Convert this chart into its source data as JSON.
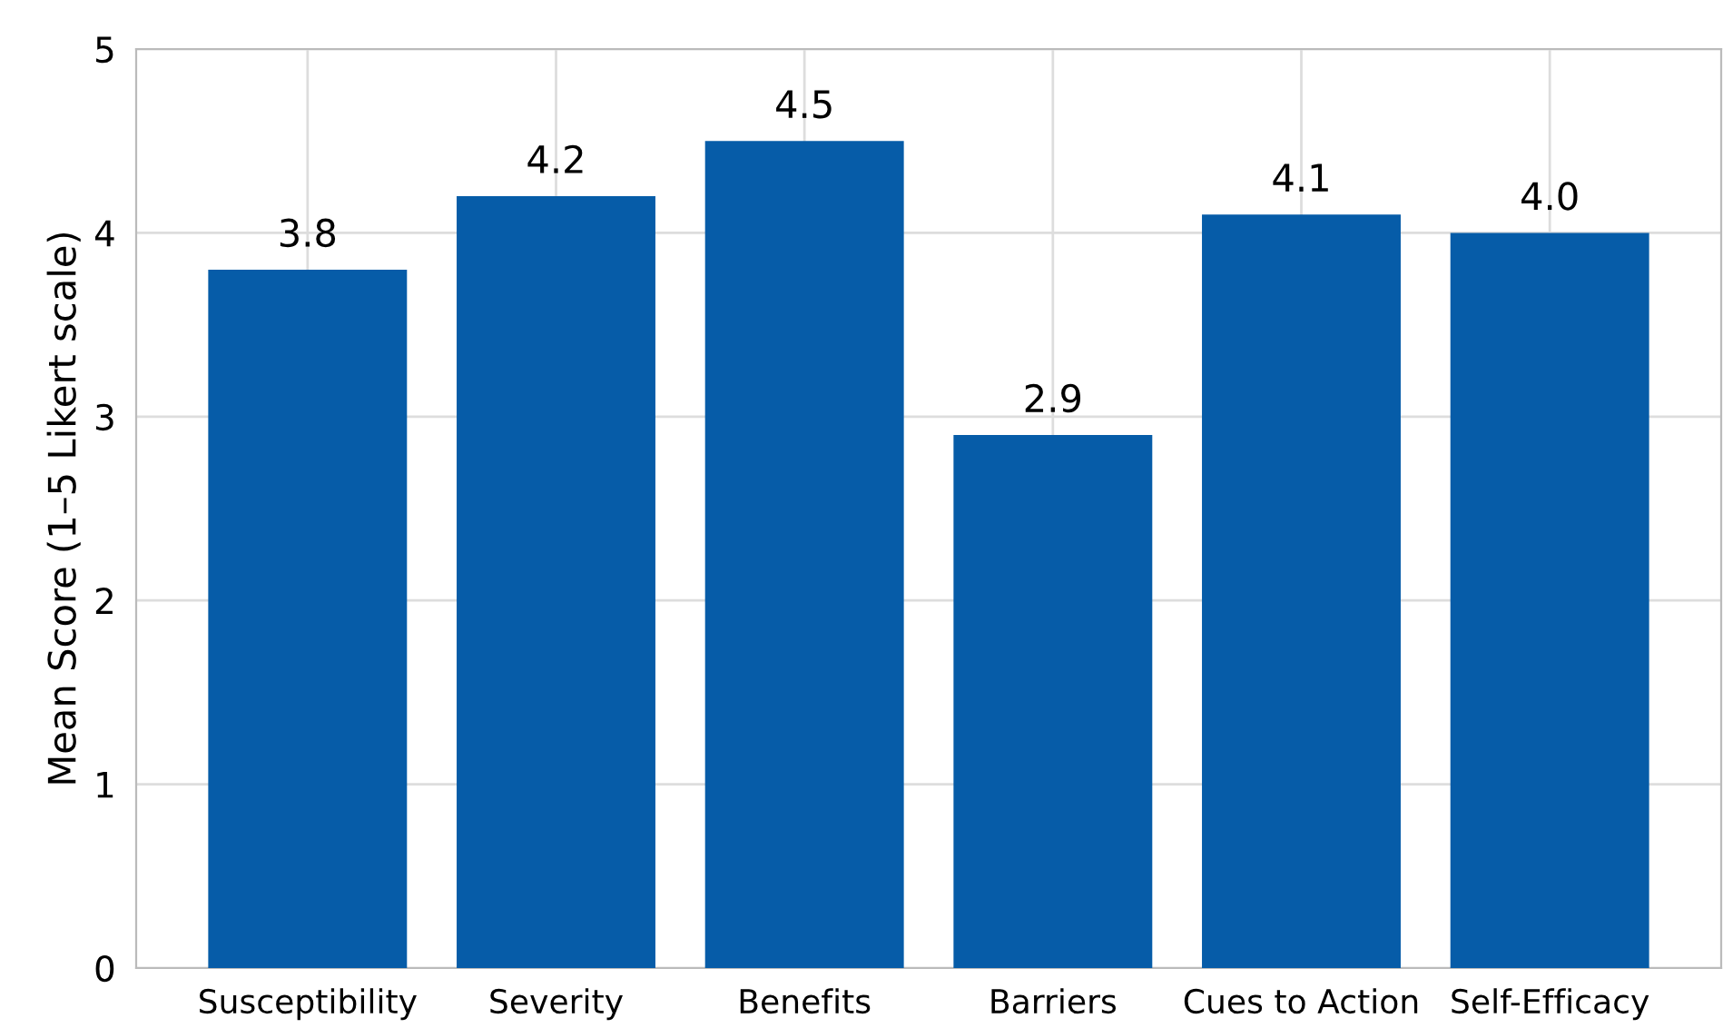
{
  "chart_data": {
    "type": "bar",
    "ylabel": "Mean Score (1–5 Likert scale)",
    "categories": [
      "Susceptibility",
      "Severity",
      "Benefits",
      "Barriers",
      "Cues to Action",
      "Self-Efficacy"
    ],
    "values": [
      3.8,
      4.2,
      4.5,
      2.9,
      4.1,
      4.0
    ],
    "value_labels": [
      "3.8",
      "4.2",
      "4.5",
      "2.9",
      "4.1",
      "4.0"
    ],
    "color": "#065ca8",
    "ylim": [
      0,
      5
    ],
    "yticks": [
      0,
      1,
      2,
      3,
      4,
      5
    ],
    "grid": true
  }
}
